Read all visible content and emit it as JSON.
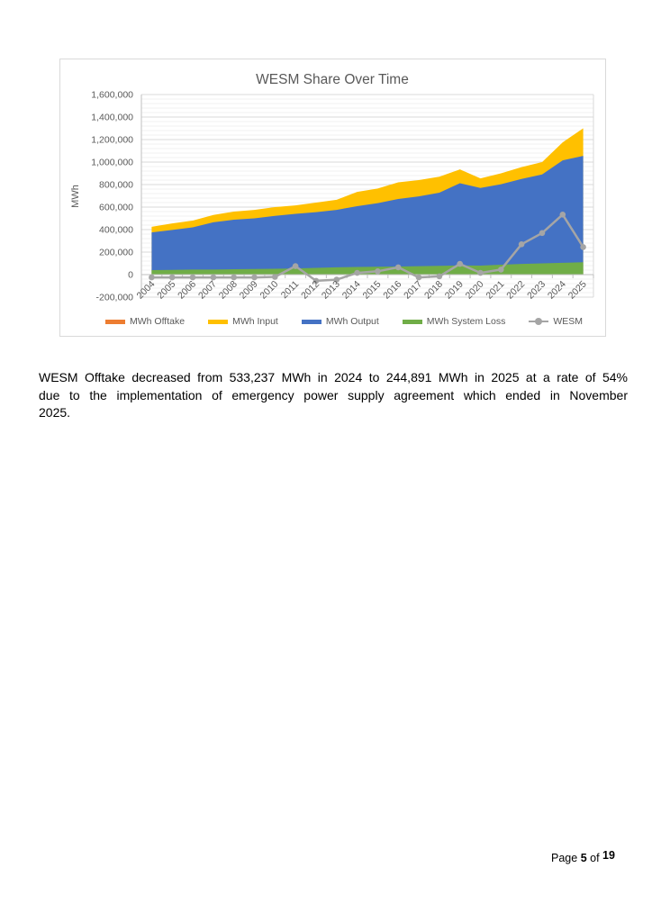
{
  "chart": {
    "title": "WESM Share Over Time",
    "y_axis_title": "MWh",
    "legend": [
      {
        "label": "MWh Offtake",
        "color": "#ED7D31",
        "type": "area"
      },
      {
        "label": "MWh Input",
        "color": "#FFC000",
        "type": "area"
      },
      {
        "label": "MWh Output",
        "color": "#4472C4",
        "type": "area"
      },
      {
        "label": "MWh System Loss",
        "color": "#70AD47",
        "type": "area"
      },
      {
        "label": "WESM",
        "color": "#A5A5A5",
        "type": "line"
      }
    ]
  },
  "chart_data": {
    "type": "area",
    "stacked": true,
    "title": "WESM Share Over Time",
    "ylabel": "MWh",
    "ylim": [
      -200000,
      1600000
    ],
    "ytick_step": 200000,
    "ytick_labels": [
      "1,600,000",
      "1,400,000",
      "1,200,000",
      "1,000,000",
      "800,000",
      "600,000",
      "400,000",
      "200,000",
      "0",
      "-200,000"
    ],
    "grid": true,
    "legend_position": "bottom",
    "categories": [
      2004,
      2005,
      2006,
      2007,
      2008,
      2009,
      2010,
      2011,
      2012,
      2013,
      2014,
      2015,
      2016,
      2017,
      2018,
      2019,
      2020,
      2021,
      2022,
      2023,
      2024,
      2025
    ],
    "series": [
      {
        "name": "MWh Offtake",
        "type": "area",
        "color": "#ED7D31",
        "values": [
          0,
          0,
          0,
          0,
          0,
          0,
          0,
          0,
          0,
          0,
          0,
          0,
          0,
          0,
          0,
          0,
          0,
          0,
          0,
          0,
          0,
          0
        ]
      },
      {
        "name": "MWh System Loss",
        "type": "area",
        "color": "#70AD47",
        "values": [
          40000,
          42000,
          45000,
          45000,
          48000,
          50000,
          52000,
          55000,
          60000,
          65000,
          68000,
          70000,
          72000,
          75000,
          78000,
          82000,
          80000,
          88000,
          95000,
          100000,
          105000,
          110000
        ]
      },
      {
        "name": "MWh Output",
        "type": "area",
        "color": "#4472C4",
        "values": [
          335000,
          355000,
          375000,
          420000,
          440000,
          450000,
          470000,
          485000,
          495000,
          510000,
          540000,
          565000,
          600000,
          620000,
          650000,
          730000,
          690000,
          715000,
          755000,
          790000,
          910000,
          945000
        ]
      },
      {
        "name": "MWh Input",
        "type": "area",
        "color": "#FFC000",
        "values": [
          50000,
          58000,
          60000,
          65000,
          72000,
          75000,
          78000,
          75000,
          85000,
          90000,
          127000,
          130000,
          148000,
          145000,
          142000,
          123000,
          85000,
          97000,
          105000,
          110000,
          160000,
          245000
        ]
      },
      {
        "name": "WESM",
        "type": "line",
        "color": "#A5A5A5",
        "values": [
          -25000,
          -25000,
          -25000,
          -25000,
          -25000,
          -25000,
          -20000,
          75000,
          -55000,
          -45000,
          15000,
          30000,
          65000,
          -25000,
          -15000,
          95000,
          15000,
          45000,
          270000,
          370000,
          533237,
          244891
        ]
      }
    ],
    "stack_order_bottom_to_top": [
      "MWh System Loss",
      "MWh Output",
      "MWh Input"
    ]
  },
  "paragraph": {
    "lines": [
      "WESM Offtake decreased from 533,237 MWh in 2024 to 244,891 MWh in 2025 at a rate of 54%",
      "due to the implementation of emergency power supply agreement which ended in November",
      "2025."
    ]
  },
  "footer": {
    "prefix": "Page",
    "current_page": "5",
    "of_label": "of",
    "total_pages": "19"
  }
}
